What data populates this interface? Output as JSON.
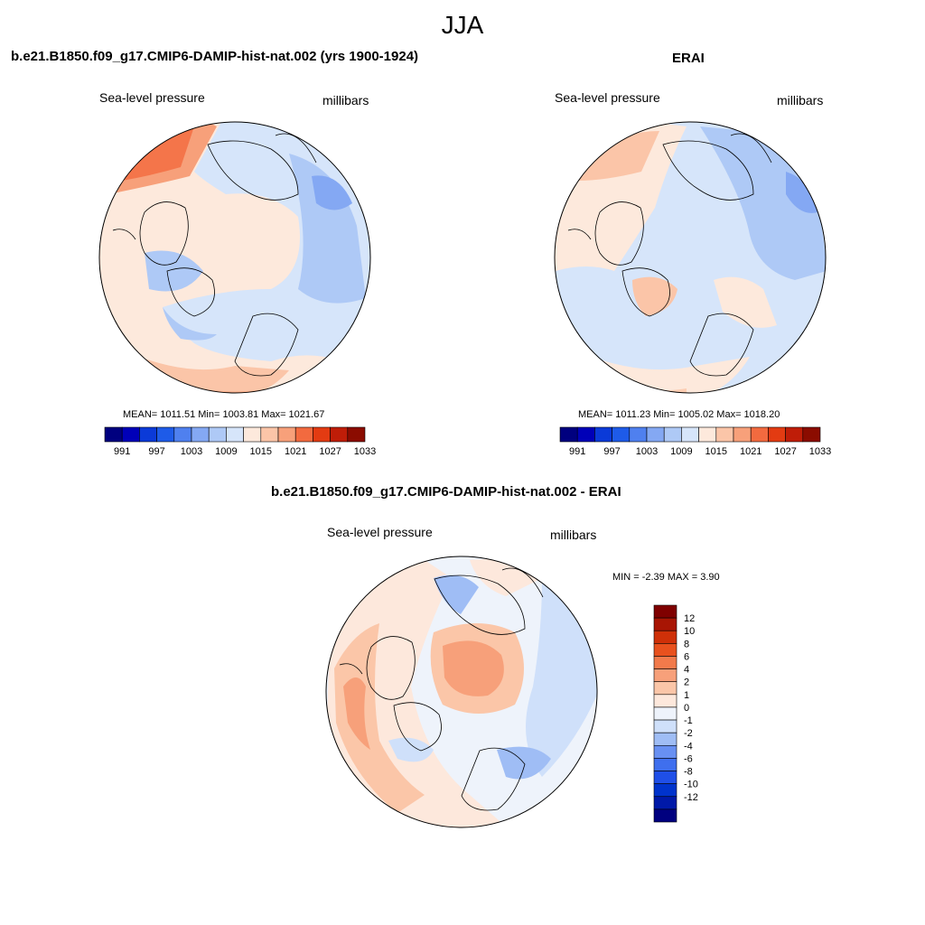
{
  "figure": {
    "season_title": "JJA"
  },
  "colors": {
    "abs_scale": [
      "#00007f",
      "#0000b8",
      "#0b3ad8",
      "#1e5be8",
      "#4f80ef",
      "#84a8f3",
      "#aec9f6",
      "#d6e5fa",
      "#fde9dc",
      "#fbc5a8",
      "#f7a07a",
      "#f26a3f",
      "#e33b12",
      "#bf1d08",
      "#8b0c00"
    ],
    "diff_scale": [
      "#00007f",
      "#0019a8",
      "#0033cc",
      "#1f4fe8",
      "#3f6fee",
      "#6890f2",
      "#9fbdf5",
      "#cfe0fa",
      "#eef3fb",
      "#fde8dc",
      "#fbc6a8",
      "#f7a07a",
      "#f27a4b",
      "#e8511e",
      "#cf3008",
      "#a81504",
      "#7f0000"
    ]
  },
  "panels": {
    "model": {
      "title": "b.e21.B1850.f09_g17.CMIP6-DAMIP-hist-nat.002 (yrs 1900-1924)",
      "var_label": "Sea-level pressure",
      "units": "millibars",
      "stats": "MEAN= 1011.51  Min= 1003.81  Max= 1021.67"
    },
    "obs": {
      "title": "ERAI",
      "var_label": "Sea-level pressure",
      "units": "millibars",
      "stats": "MEAN= 1011.23  Min= 1005.02  Max= 1018.20"
    },
    "diff": {
      "title": "b.e21.B1850.f09_g17.CMIP6-DAMIP-hist-nat.002 - ERAI",
      "var_label": "Sea-level pressure",
      "units": "millibars",
      "stats": "MIN =  -2.39 MAX =   3.90"
    }
  },
  "colorbars": {
    "abs": {
      "ticks": [
        "991",
        "997",
        "1003",
        "1009",
        "1015",
        "1021",
        "1027",
        "1033"
      ]
    },
    "diff": {
      "ticks": [
        "12",
        "10",
        "8",
        "6",
        "4",
        "2",
        "1",
        "0",
        "-1",
        "-2",
        "-4",
        "-6",
        "-8",
        "-10",
        "-12"
      ]
    }
  }
}
